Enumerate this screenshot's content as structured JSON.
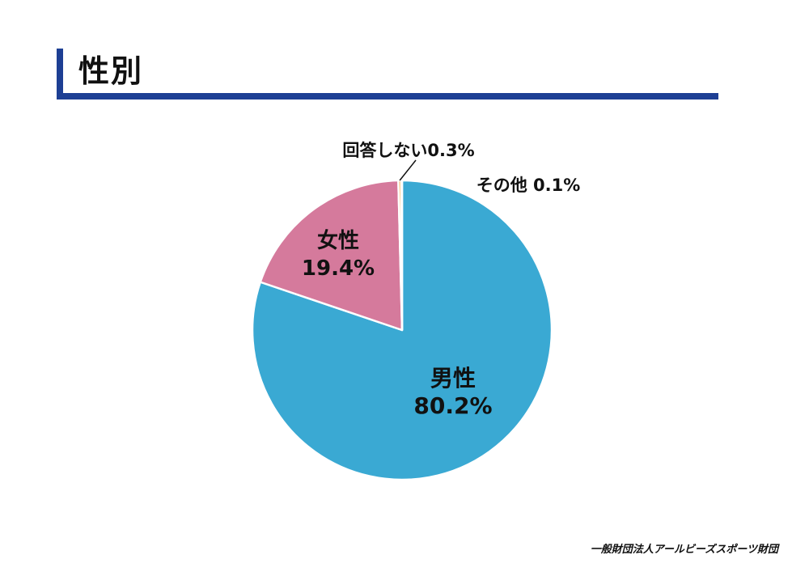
{
  "page": {
    "title": "性別",
    "footer": "一般財団法人アールビーズスポーツ財団"
  },
  "chart_data": {
    "type": "pie",
    "title": "性別",
    "start": "12 o'clock",
    "direction": "clockwise",
    "slices": [
      {
        "label": "男性",
        "value": 80.2,
        "value_label": "80.2%",
        "color": "#3aa9d3"
      },
      {
        "label": "女性",
        "value": 19.4,
        "value_label": "19.4%",
        "color": "#d57a9c"
      },
      {
        "label": "回答しない",
        "value": 0.3,
        "value_label": "0.3%",
        "color": "#f2a33a"
      },
      {
        "label": "その他",
        "value": 0.1,
        "value_label": "0.1%",
        "color": "#ffd400"
      }
    ]
  }
}
